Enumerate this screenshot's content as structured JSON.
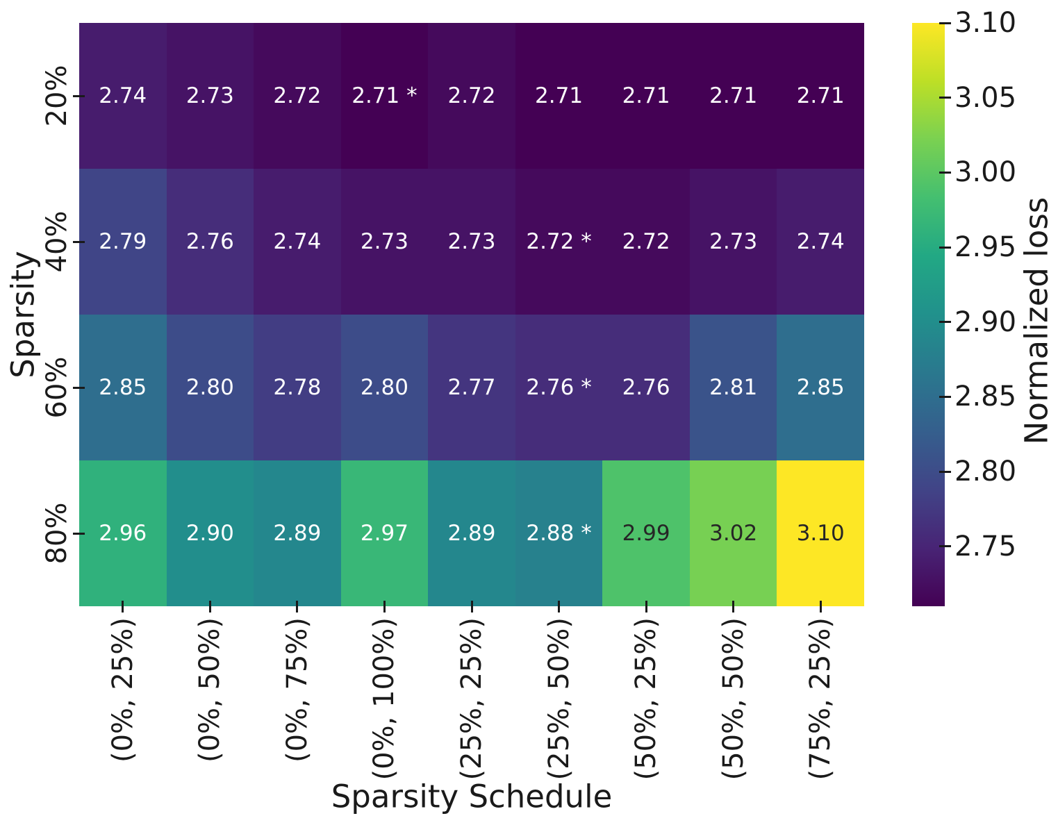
{
  "chart_data": {
    "type": "heatmap",
    "title": "",
    "xlabel": "Sparsity Schedule",
    "ylabel": "Sparsity",
    "x_categories": [
      "(0%, 25%)",
      "(0%, 50%)",
      "(0%, 75%)",
      "(0%, 100%)",
      "(25%, 25%)",
      "(25%, 50%)",
      "(50%, 25%)",
      "(50%, 50%)",
      "(75%, 25%)"
    ],
    "y_categories": [
      "20%",
      "40%",
      "60%",
      "80%"
    ],
    "values": [
      [
        2.74,
        2.73,
        2.72,
        2.71,
        2.72,
        2.71,
        2.71,
        2.71,
        2.71
      ],
      [
        2.79,
        2.76,
        2.74,
        2.73,
        2.73,
        2.72,
        2.72,
        2.73,
        2.74
      ],
      [
        2.85,
        2.8,
        2.78,
        2.8,
        2.77,
        2.76,
        2.76,
        2.81,
        2.85
      ],
      [
        2.96,
        2.9,
        2.89,
        2.97,
        2.89,
        2.88,
        2.99,
        3.02,
        3.1
      ]
    ],
    "annotations": [
      [
        "2.74",
        "2.73",
        "2.72",
        "2.71 *",
        "2.72",
        "2.71",
        "2.71",
        "2.71",
        "2.71"
      ],
      [
        "2.79",
        "2.76",
        "2.74",
        "2.73",
        "2.73",
        "2.72 *",
        "2.72",
        "2.73",
        "2.74"
      ],
      [
        "2.85",
        "2.80",
        "2.78",
        "2.80",
        "2.77",
        "2.76 *",
        "2.76",
        "2.81",
        "2.85"
      ],
      [
        "2.96",
        "2.90",
        "2.89",
        "2.97",
        "2.89",
        "2.88 *",
        "2.99",
        "3.02",
        "3.10"
      ]
    ],
    "annotation_text_colors": {
      "light": "#ffffff",
      "dark": "#262626"
    },
    "axis_text_color": "#1a1a1a",
    "grid": false,
    "colorbar": {
      "label": "Normalized loss",
      "tick_labels": [
        "2.75",
        "2.80",
        "2.85",
        "2.90",
        "2.95",
        "3.00",
        "3.05",
        "3.10"
      ],
      "tick_values": [
        2.75,
        2.8,
        2.85,
        2.9,
        2.95,
        3.0,
        3.05,
        3.1
      ],
      "vmin": 2.71,
      "vmax": 3.1,
      "colormap_name": "viridis",
      "gradient_stops": [
        "#440154",
        "#482475",
        "#414487",
        "#355f8d",
        "#2a788e",
        "#21918c",
        "#22a884",
        "#44bf70",
        "#7ad151",
        "#bddf26",
        "#fde725"
      ],
      "position": "right"
    }
  }
}
